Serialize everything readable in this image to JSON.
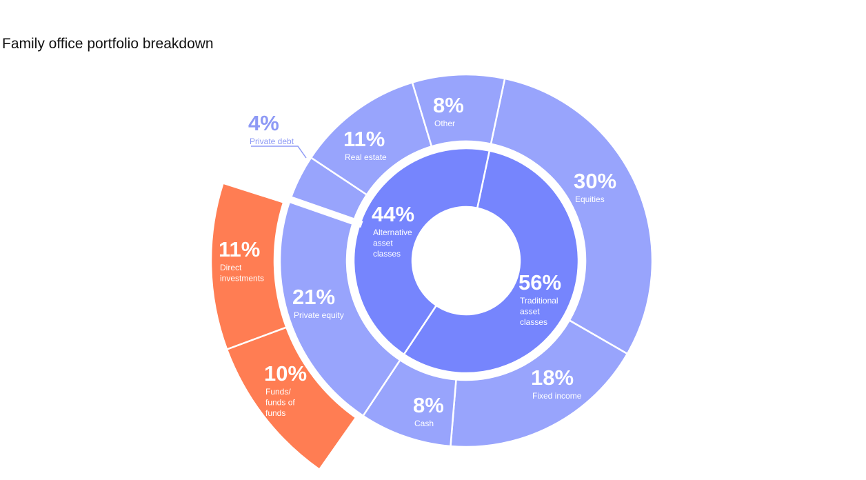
{
  "chart_data": {
    "type": "sunburst",
    "title": "Family office portfolio breakdown",
    "inner": [
      {
        "name": "Traditional asset classes",
        "label_lines": [
          "Traditional",
          "asset",
          "classes"
        ],
        "pct_label": "56%",
        "value": 56
      },
      {
        "name": "Alternative asset classes",
        "label_lines": [
          "Alternative",
          "asset",
          "classes"
        ],
        "pct_label": "44%",
        "value": 44
      }
    ],
    "middle": [
      {
        "name": "Equities",
        "label_lines": [
          "Equities"
        ],
        "pct_label": "30%",
        "value": 30,
        "parent": "Traditional asset classes"
      },
      {
        "name": "Fixed income",
        "label_lines": [
          "Fixed income"
        ],
        "pct_label": "18%",
        "value": 18,
        "parent": "Traditional asset classes"
      },
      {
        "name": "Cash",
        "label_lines": [
          "Cash"
        ],
        "pct_label": "8%",
        "value": 8,
        "parent": "Traditional asset classes"
      },
      {
        "name": "Private equity",
        "label_lines": [
          "Private equity"
        ],
        "pct_label": "21%",
        "value": 21,
        "parent": "Alternative asset classes"
      },
      {
        "name": "Private debt",
        "label_lines": [
          "Private debt"
        ],
        "pct_label": "4%",
        "value": 4,
        "parent": "Alternative asset classes",
        "label_outside": true
      },
      {
        "name": "Real estate",
        "label_lines": [
          "Real estate"
        ],
        "pct_label": "11%",
        "value": 11,
        "parent": "Alternative asset classes"
      },
      {
        "name": "Other",
        "label_lines": [
          "Other"
        ],
        "pct_label": "8%",
        "value": 8,
        "parent": "Alternative asset classes"
      }
    ],
    "outer": [
      {
        "name": "Funds/ funds of funds",
        "label_lines": [
          "Funds/",
          "funds of",
          "funds"
        ],
        "pct_label": "10%",
        "value": 10,
        "parent": "Private equity"
      },
      {
        "name": "Direct investments",
        "label_lines": [
          "Direct",
          "investments"
        ],
        "pct_label": "11%",
        "value": 11,
        "parent": "Private equity"
      }
    ],
    "colors": {
      "inner": "#7685fd",
      "middle": "#98a4fc",
      "outer": "#ff7d53",
      "external_label": "#8d99f5",
      "text": "#ffffff",
      "title": "#111111"
    }
  }
}
